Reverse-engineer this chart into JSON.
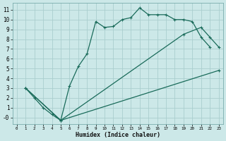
{
  "xlabel": "Humidex (Indice chaleur)",
  "bg_color": "#cce8e8",
  "grid_color": "#aacece",
  "line_color": "#1a6b5a",
  "xlim": [
    -0.5,
    23.5
  ],
  "ylim": [
    -0.7,
    11.7
  ],
  "xticks": [
    0,
    1,
    2,
    3,
    4,
    5,
    6,
    7,
    8,
    9,
    10,
    11,
    12,
    13,
    14,
    15,
    16,
    17,
    18,
    19,
    20,
    21,
    22,
    23
  ],
  "yticks": [
    0,
    1,
    2,
    3,
    4,
    5,
    6,
    7,
    8,
    9,
    10,
    11
  ],
  "ytick_labels": [
    "-0",
    "1",
    "2",
    "3",
    "4",
    "5",
    "6",
    "7",
    "8",
    "9",
    "10",
    "11"
  ],
  "curve1_x": [
    1,
    2,
    3,
    4,
    5,
    6,
    7,
    8,
    9,
    10,
    11,
    12,
    13,
    14,
    15,
    16,
    17,
    18,
    19,
    20,
    21,
    22
  ],
  "curve1_y": [
    3.0,
    2.0,
    1.0,
    0.3,
    -0.3,
    3.2,
    5.2,
    6.5,
    9.8,
    9.2,
    9.3,
    10.0,
    10.2,
    11.2,
    10.5,
    10.5,
    10.5,
    10.0,
    10.0,
    9.8,
    8.2,
    7.2
  ],
  "curve2_x": [
    1,
    5,
    23
  ],
  "curve2_y": [
    3.0,
    -0.3,
    4.8
  ],
  "curve3_x": [
    1,
    5,
    19,
    21,
    22,
    23
  ],
  "curve3_y": [
    3.0,
    -0.3,
    8.5,
    9.2,
    8.2,
    7.2
  ]
}
